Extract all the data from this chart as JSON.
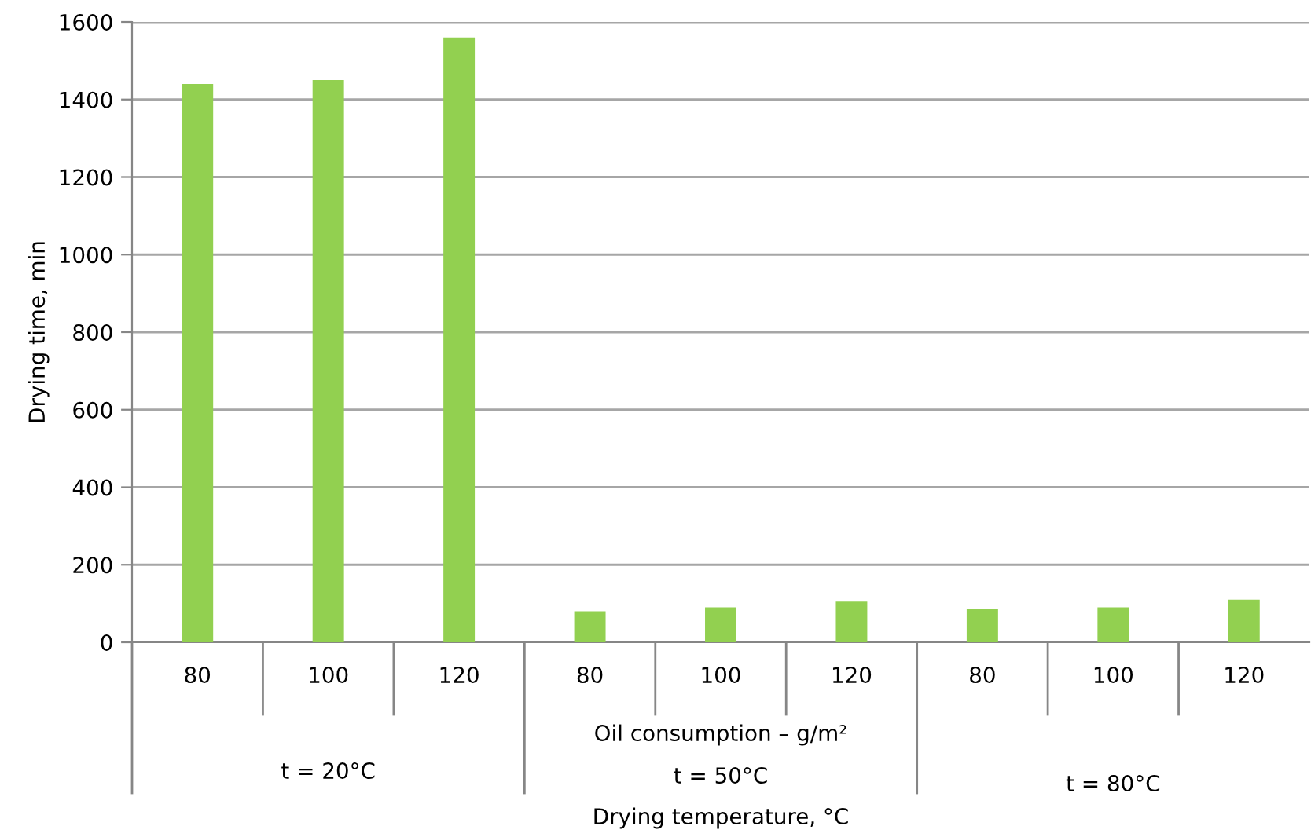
{
  "chart_data": {
    "type": "bar",
    "categories": [
      "80",
      "100",
      "120",
      "80",
      "100",
      "120",
      "80",
      "100",
      "120"
    ],
    "values": [
      1440,
      1450,
      1560,
      80,
      90,
      105,
      85,
      90,
      110
    ],
    "color": "#92d050",
    "ylabel": "Drying time, min",
    "annotations": [
      "Oil consumption – g/m²",
      "t = 20°C",
      "t = 50°C",
      "t = 80°C",
      "Drying temperature, °C"
    ],
    "ylim": [
      0,
      1600
    ],
    "yticks": [
      0,
      200,
      400,
      600,
      800,
      1000,
      1200,
      1400,
      1600
    ],
    "grid": "y",
    "legend": false
  }
}
